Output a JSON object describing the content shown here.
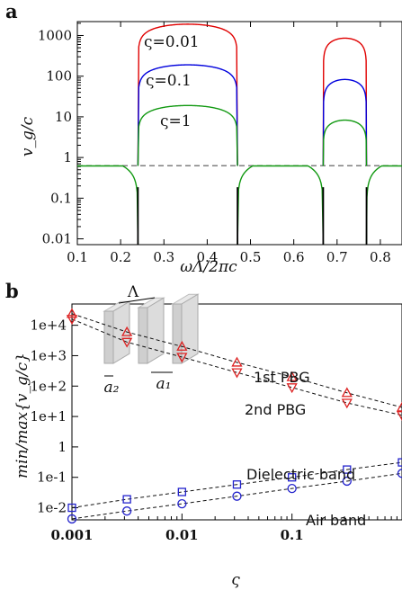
{
  "chart_data": [
    {
      "panel": "a",
      "type": "line",
      "xlabel": "ωΛ/2πc",
      "ylabel": "v_g/c",
      "xlim": [
        0.1,
        0.85
      ],
      "ylim": [
        0.0072,
        2200
      ],
      "yscale": "log",
      "xticks": [
        "0.1",
        "0.2",
        "0.3",
        "0.4",
        "0.5",
        "0.6",
        "0.7",
        "0.8"
      ],
      "yticks": [
        "0.01",
        "0.1",
        "1",
        "10",
        "100",
        "1000"
      ],
      "reference_line": {
        "y": 0.63,
        "style": "dashed",
        "color": "#555555"
      },
      "band_edges": [
        0.24,
        0.47,
        0.668,
        0.768
      ],
      "passband_level": 0.62,
      "series": [
        {
          "name": "ς=0.01",
          "color": "#e00000",
          "gap_peaks": [
            1900,
            860
          ]
        },
        {
          "name": "ς=0.1",
          "color": "#0000dd",
          "gap_peaks": [
            190,
            83
          ]
        },
        {
          "name": "ς=1",
          "color": "#119911",
          "gap_peaks": [
            19,
            8.3
          ]
        }
      ]
    },
    {
      "panel": "b",
      "type": "scatter",
      "xlabel": "ς",
      "ylabel": "min/max{v_g/c}",
      "yscale": "log",
      "xscale": "log",
      "xlim": [
        0.001,
        1
      ],
      "ylim": [
        0.004,
        50000
      ],
      "xticks": [
        "0.001",
        "0.01",
        "0.1"
      ],
      "yticks": [
        "1e-2",
        "1e-1",
        "1",
        "1e+1",
        "1e+2",
        "1e+3",
        "1e+4"
      ],
      "x": [
        0.001,
        0.00316,
        0.01,
        0.0316,
        0.1,
        0.316,
        1
      ],
      "series": [
        {
          "name": "1st PBG",
          "marker": "triangle-up",
          "color": "#dd2222",
          "values": [
            24000,
            6000,
            2000,
            600,
            200,
            60,
            20
          ]
        },
        {
          "name": "2nd PBG",
          "marker": "triangle-down",
          "color": "#dd2222",
          "values": [
            16000,
            2800,
            900,
            280,
            90,
            28,
            11
          ]
        },
        {
          "name": "Dielectric band",
          "marker": "square",
          "color": "#2222cc",
          "values": [
            0.01,
            0.019,
            0.033,
            0.058,
            0.1,
            0.18,
            0.31
          ]
        },
        {
          "name": "Air band",
          "marker": "circle",
          "color": "#2222cc",
          "values": [
            0.0043,
            0.0078,
            0.0135,
            0.024,
            0.043,
            0.075,
            0.135
          ]
        }
      ],
      "inset_labels": {
        "lambda": "Λ",
        "a1": "a₁",
        "a2": "a₂"
      }
    }
  ],
  "panel_labels": {
    "a": "a",
    "b": "b"
  },
  "annotations_a": [
    "ς=0.01",
    "ς=0.1",
    "ς=1"
  ],
  "annotations_b": [
    "1st PBG",
    "2nd PBG",
    "Dielectric band",
    "Air band"
  ]
}
